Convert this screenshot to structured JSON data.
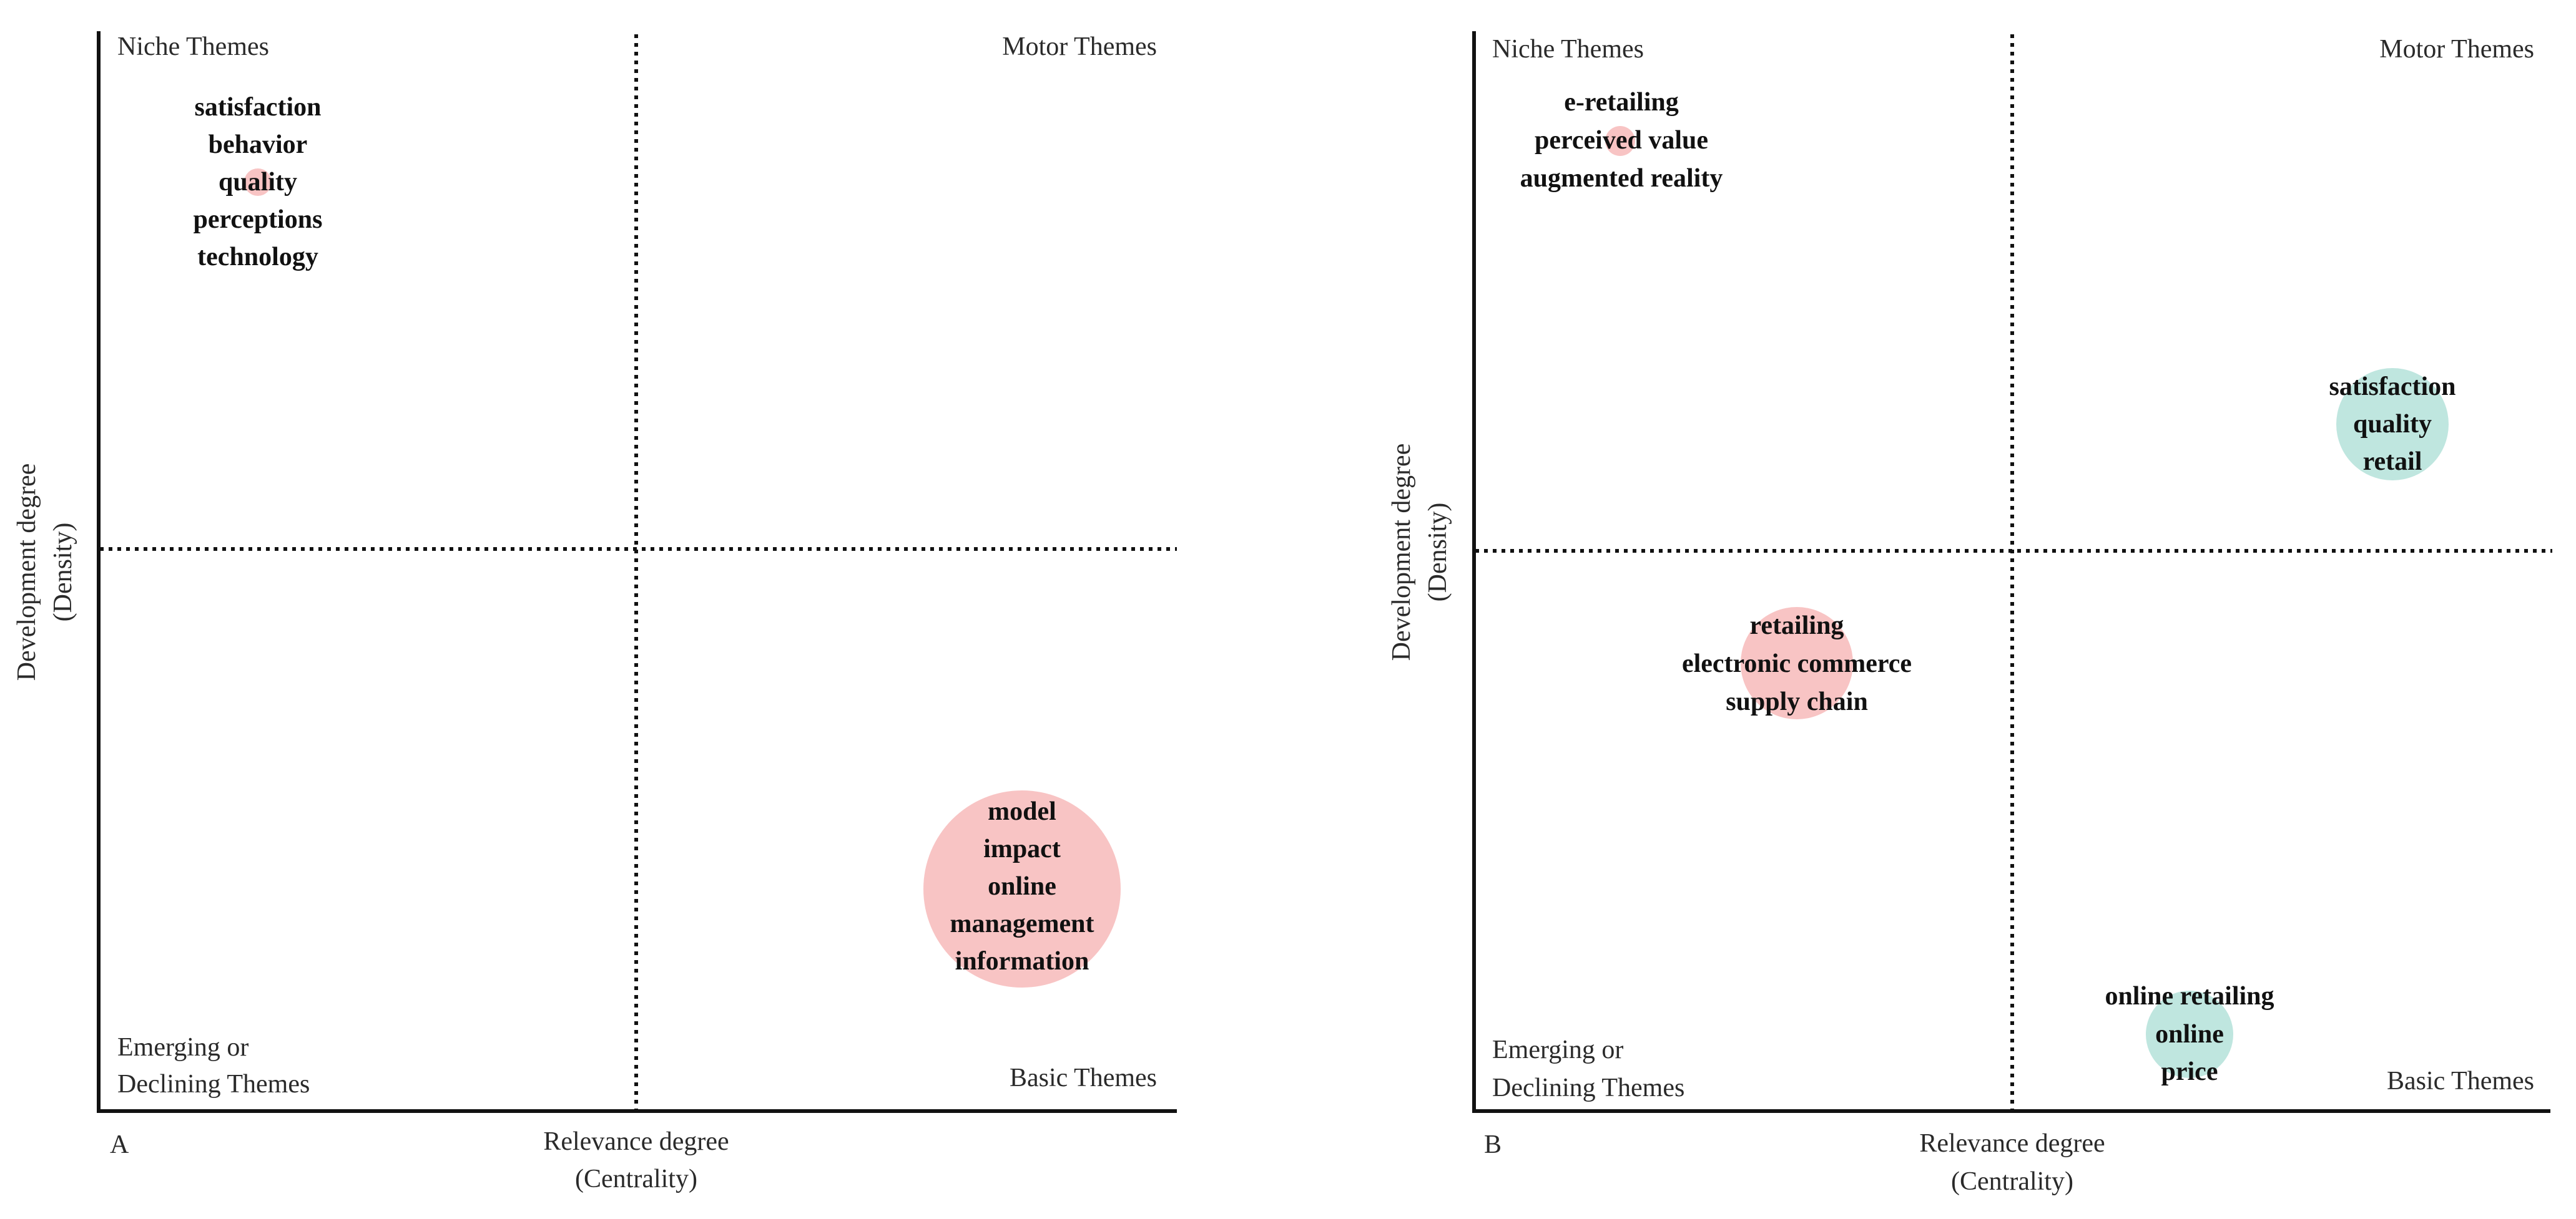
{
  "colors": {
    "axis": "#111111",
    "text": "#2a2a2a",
    "pink_bubble": "#f8c4c4",
    "teal_bubble": "#bfe6df"
  },
  "panels": [
    {
      "letter": "A",
      "quadrants": {
        "top_left": "Niche Themes",
        "top_right": "Motor Themes",
        "bottom_left": [
          "Emerging or",
          "Declining Themes"
        ],
        "bottom_right": "Basic Themes"
      },
      "x_axis": [
        "Relevance degree",
        "(Centrality)"
      ],
      "y_axis": [
        "Development degree",
        "(Density)"
      ],
      "clusters": [
        {
          "keywords": [
            "satisfaction",
            "behavior",
            "quality",
            "perceptions",
            "technology"
          ],
          "color": "pink",
          "size": "small"
        },
        {
          "keywords": [
            "model",
            "impact",
            "online",
            "management",
            "information"
          ],
          "color": "pink",
          "size": "large"
        }
      ]
    },
    {
      "letter": "B",
      "quadrants": {
        "top_left": "Niche Themes",
        "top_right": "Motor Themes",
        "bottom_left": [
          "Emerging or",
          "Declining Themes"
        ],
        "bottom_right": "Basic Themes"
      },
      "x_axis": [
        "Relevance degree",
        "(Centrality)"
      ],
      "y_axis": [
        "Development degree",
        "(Density)"
      ],
      "clusters": [
        {
          "keywords": [
            "e-retailing",
            "perceived value",
            "augmented reality"
          ],
          "color": "pink",
          "size": "tiny"
        },
        {
          "keywords": [
            "satisfaction",
            "quality",
            "retail"
          ],
          "color": "teal",
          "size": "medium"
        },
        {
          "keywords": [
            "retailing",
            "electronic commerce",
            "supply chain"
          ],
          "color": "pink",
          "size": "medium"
        },
        {
          "keywords": [
            "online retailing",
            "online",
            "price"
          ],
          "color": "teal",
          "size": "medium"
        }
      ]
    }
  ]
}
